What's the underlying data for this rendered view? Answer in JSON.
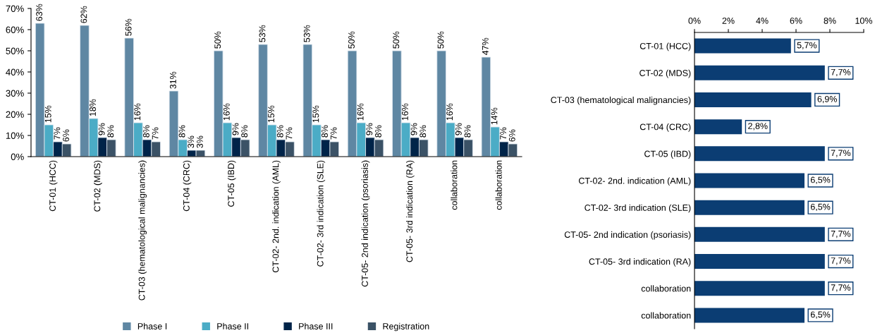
{
  "chart_data": [
    {
      "type": "bar",
      "categories": [
        "CT-01 (HCC)",
        "CT-02 (MDS)",
        "CT-03 (hematological malignancies)",
        "CT-04 (CRC)",
        "CT-05 (IBD)",
        "CT-02- 2nd. indication (AML)",
        "CT-02- 3rd indication (SLE)",
        "CT-05- 2nd indication (psoriasis)",
        "CT-05- 3rd indication (RA)",
        "collaboration",
        "collaboration"
      ],
      "series": [
        {
          "name": "Phase I",
          "color": "#5f87a3",
          "values": [
            63,
            62,
            56,
            31,
            50,
            53,
            53,
            50,
            50,
            50,
            47
          ],
          "value_labels": [
            "63%",
            "62%",
            "56%",
            "31%",
            "50%",
            "53%",
            "53%",
            "50%",
            "50%",
            "50%",
            "47%"
          ]
        },
        {
          "name": "Phase II",
          "color": "#4bacc6",
          "values": [
            15,
            18,
            16,
            8,
            16,
            15,
            15,
            16,
            16,
            16,
            14
          ],
          "value_labels": [
            "15%",
            "18%",
            "16%",
            "8%",
            "16%",
            "15%",
            "15%",
            "16%",
            "16%",
            "16%",
            "14%"
          ]
        },
        {
          "name": "Phase III",
          "color": "#002449",
          "values": [
            7,
            9,
            8,
            3,
            9,
            8,
            8,
            9,
            9,
            9,
            7
          ],
          "value_labels": [
            "7%",
            "9%",
            "8%",
            "3%",
            "9%",
            "8%",
            "8%",
            "9%",
            "9%",
            "9%",
            "7%"
          ]
        },
        {
          "name": "Registration",
          "color": "#3b5266",
          "values": [
            6,
            8,
            7,
            3,
            8,
            7,
            7,
            8,
            8,
            8,
            6
          ],
          "value_labels": [
            "6%",
            "8%",
            "7%",
            "3%",
            "8%",
            "7%",
            "7%",
            "8%",
            "8%",
            "8%",
            "6%"
          ]
        }
      ],
      "ylim": [
        0,
        70
      ],
      "yticks": [
        {
          "value": 0,
          "label": "0%"
        },
        {
          "value": 10,
          "label": "10%"
        },
        {
          "value": 20,
          "label": "20%"
        },
        {
          "value": 30,
          "label": "30%"
        },
        {
          "value": 40,
          "label": "40%"
        },
        {
          "value": 50,
          "label": "50%"
        },
        {
          "value": 60,
          "label": "60%"
        },
        {
          "value": 70,
          "label": "70%"
        }
      ],
      "grid": false,
      "legend": "bottom"
    },
    {
      "type": "bar",
      "orientation": "horizontal",
      "categories": [
        "CT-01 (HCC)",
        "CT-02 (MDS)",
        "CT-03 (hematological malignancies)",
        "CT-04 (CRC)",
        "CT-05 (IBD)",
        "CT-02- 2nd. indication (AML)",
        "CT-02- 3rd indication (SLE)",
        "CT-05- 2nd indication (psoriasis)",
        "CT-05- 3rd indication (RA)",
        "collaboration",
        "collaboration"
      ],
      "values": [
        5.7,
        7.7,
        6.9,
        2.8,
        7.7,
        6.5,
        6.5,
        7.7,
        7.7,
        7.7,
        6.5
      ],
      "color": "#0b3d73",
      "value_labels": [
        "5,7%",
        "7,7%",
        "6,9%",
        "2,8%",
        "7,7%",
        "6,5%",
        "6,5%",
        "7,7%",
        "7,7%",
        "7,7%",
        "6,5%"
      ],
      "xlim": [
        0,
        10
      ],
      "xticks": [
        {
          "value": 0,
          "label": "0%"
        },
        {
          "value": 2,
          "label": "2%"
        },
        {
          "value": 4,
          "label": "4%"
        },
        {
          "value": 6,
          "label": "6%"
        },
        {
          "value": 8,
          "label": "8%"
        },
        {
          "value": 10,
          "label": "10%"
        }
      ],
      "grid": false
    }
  ]
}
